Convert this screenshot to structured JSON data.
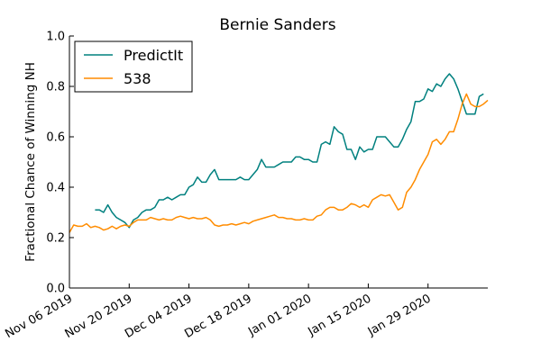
{
  "chart_data": {
    "type": "line",
    "title": "Bernie Sanders",
    "xlabel": "",
    "ylabel": "Fractional Chance of Winning NH",
    "ylim": [
      0,
      1.0
    ],
    "xlim": [
      "2019-11-06",
      "2020-02-12"
    ],
    "yticks": [
      "0.0",
      "0.2",
      "0.4",
      "0.6",
      "0.8",
      "1.0"
    ],
    "xticks": [
      {
        "label": "Nov 06 2019",
        "date": "2019-11-06"
      },
      {
        "label": "Nov 20 2019",
        "date": "2019-11-20"
      },
      {
        "label": "Dec 04 2019",
        "date": "2019-12-04"
      },
      {
        "label": "Dec 18 2019",
        "date": "2019-12-18"
      },
      {
        "label": "Jan 01 2020",
        "date": "2020-01-01"
      },
      {
        "label": "Jan 15 2020",
        "date": "2020-01-15"
      },
      {
        "label": "Jan 29 2020",
        "date": "2020-01-29"
      }
    ],
    "grid": false,
    "legend": "top-left",
    "series": [
      {
        "name": "PredictIt",
        "color": "#00807f",
        "points": [
          [
            "2019-11-12",
            0.31
          ],
          [
            "2019-11-13",
            0.31
          ],
          [
            "2019-11-14",
            0.3
          ],
          [
            "2019-11-15",
            0.33
          ],
          [
            "2019-11-16",
            0.3
          ],
          [
            "2019-11-17",
            0.28
          ],
          [
            "2019-11-18",
            0.27
          ],
          [
            "2019-11-19",
            0.26
          ],
          [
            "2019-11-20",
            0.24
          ],
          [
            "2019-11-21",
            0.27
          ],
          [
            "2019-11-22",
            0.28
          ],
          [
            "2019-11-23",
            0.3
          ],
          [
            "2019-11-24",
            0.31
          ],
          [
            "2019-11-25",
            0.31
          ],
          [
            "2019-11-26",
            0.32
          ],
          [
            "2019-11-27",
            0.35
          ],
          [
            "2019-11-28",
            0.35
          ],
          [
            "2019-11-29",
            0.36
          ],
          [
            "2019-11-30",
            0.35
          ],
          [
            "2019-12-01",
            0.36
          ],
          [
            "2019-12-02",
            0.37
          ],
          [
            "2019-12-03",
            0.37
          ],
          [
            "2019-12-04",
            0.4
          ],
          [
            "2019-12-05",
            0.41
          ],
          [
            "2019-12-06",
            0.44
          ],
          [
            "2019-12-07",
            0.42
          ],
          [
            "2019-12-08",
            0.42
          ],
          [
            "2019-12-09",
            0.45
          ],
          [
            "2019-12-10",
            0.47
          ],
          [
            "2019-12-11",
            0.43
          ],
          [
            "2019-12-12",
            0.43
          ],
          [
            "2019-12-13",
            0.43
          ],
          [
            "2019-12-14",
            0.43
          ],
          [
            "2019-12-15",
            0.43
          ],
          [
            "2019-12-16",
            0.44
          ],
          [
            "2019-12-17",
            0.43
          ],
          [
            "2019-12-18",
            0.43
          ],
          [
            "2019-12-19",
            0.45
          ],
          [
            "2019-12-20",
            0.47
          ],
          [
            "2019-12-21",
            0.51
          ],
          [
            "2019-12-22",
            0.48
          ],
          [
            "2019-12-23",
            0.48
          ],
          [
            "2019-12-24",
            0.48
          ],
          [
            "2019-12-25",
            0.49
          ],
          [
            "2019-12-26",
            0.5
          ],
          [
            "2019-12-27",
            0.5
          ],
          [
            "2019-12-28",
            0.5
          ],
          [
            "2019-12-29",
            0.52
          ],
          [
            "2019-12-30",
            0.52
          ],
          [
            "2019-12-31",
            0.51
          ],
          [
            "2020-01-01",
            0.51
          ],
          [
            "2020-01-02",
            0.5
          ],
          [
            "2020-01-03",
            0.5
          ],
          [
            "2020-01-04",
            0.57
          ],
          [
            "2020-01-05",
            0.58
          ],
          [
            "2020-01-06",
            0.57
          ],
          [
            "2020-01-07",
            0.64
          ],
          [
            "2020-01-08",
            0.62
          ],
          [
            "2020-01-09",
            0.61
          ],
          [
            "2020-01-10",
            0.55
          ],
          [
            "2020-01-11",
            0.55
          ],
          [
            "2020-01-12",
            0.51
          ],
          [
            "2020-01-13",
            0.56
          ],
          [
            "2020-01-14",
            0.54
          ],
          [
            "2020-01-15",
            0.55
          ],
          [
            "2020-01-16",
            0.55
          ],
          [
            "2020-01-17",
            0.6
          ],
          [
            "2020-01-18",
            0.6
          ],
          [
            "2020-01-19",
            0.6
          ],
          [
            "2020-01-20",
            0.58
          ],
          [
            "2020-01-21",
            0.56
          ],
          [
            "2020-01-22",
            0.56
          ],
          [
            "2020-01-23",
            0.59
          ],
          [
            "2020-01-24",
            0.63
          ],
          [
            "2020-01-25",
            0.66
          ],
          [
            "2020-01-26",
            0.74
          ],
          [
            "2020-01-27",
            0.74
          ],
          [
            "2020-01-28",
            0.75
          ],
          [
            "2020-01-29",
            0.79
          ],
          [
            "2020-01-30",
            0.78
          ],
          [
            "2020-01-31",
            0.81
          ],
          [
            "2020-02-01",
            0.8
          ],
          [
            "2020-02-02",
            0.83
          ],
          [
            "2020-02-03",
            0.85
          ],
          [
            "2020-02-04",
            0.83
          ],
          [
            "2020-02-05",
            0.79
          ],
          [
            "2020-02-06",
            0.74
          ],
          [
            "2020-02-07",
            0.69
          ],
          [
            "2020-02-08",
            0.69
          ],
          [
            "2020-02-09",
            0.69
          ],
          [
            "2020-02-10",
            0.76
          ],
          [
            "2020-02-11",
            0.77
          ]
        ]
      },
      {
        "name": "538",
        "color": "#ff8c00",
        "points": [
          [
            "2019-11-06",
            0.22
          ],
          [
            "2019-11-07",
            0.25
          ],
          [
            "2019-11-08",
            0.245
          ],
          [
            "2019-11-09",
            0.245
          ],
          [
            "2019-11-10",
            0.255
          ],
          [
            "2019-11-11",
            0.24
          ],
          [
            "2019-11-12",
            0.245
          ],
          [
            "2019-11-13",
            0.24
          ],
          [
            "2019-11-14",
            0.23
          ],
          [
            "2019-11-15",
            0.235
          ],
          [
            "2019-11-16",
            0.245
          ],
          [
            "2019-11-17",
            0.235
          ],
          [
            "2019-11-18",
            0.245
          ],
          [
            "2019-11-19",
            0.25
          ],
          [
            "2019-11-20",
            0.245
          ],
          [
            "2019-11-21",
            0.26
          ],
          [
            "2019-11-22",
            0.27
          ],
          [
            "2019-11-23",
            0.27
          ],
          [
            "2019-11-24",
            0.27
          ],
          [
            "2019-11-25",
            0.28
          ],
          [
            "2019-11-26",
            0.275
          ],
          [
            "2019-11-27",
            0.27
          ],
          [
            "2019-11-28",
            0.275
          ],
          [
            "2019-11-29",
            0.27
          ],
          [
            "2019-11-30",
            0.27
          ],
          [
            "2019-12-01",
            0.28
          ],
          [
            "2019-12-02",
            0.285
          ],
          [
            "2019-12-03",
            0.28
          ],
          [
            "2019-12-04",
            0.275
          ],
          [
            "2019-12-05",
            0.28
          ],
          [
            "2019-12-06",
            0.275
          ],
          [
            "2019-12-07",
            0.275
          ],
          [
            "2019-12-08",
            0.28
          ],
          [
            "2019-12-09",
            0.27
          ],
          [
            "2019-12-10",
            0.25
          ],
          [
            "2019-12-11",
            0.245
          ],
          [
            "2019-12-12",
            0.25
          ],
          [
            "2019-12-13",
            0.25
          ],
          [
            "2019-12-14",
            0.255
          ],
          [
            "2019-12-15",
            0.25
          ],
          [
            "2019-12-16",
            0.255
          ],
          [
            "2019-12-17",
            0.26
          ],
          [
            "2019-12-18",
            0.255
          ],
          [
            "2019-12-19",
            0.265
          ],
          [
            "2019-12-20",
            0.27
          ],
          [
            "2019-12-21",
            0.275
          ],
          [
            "2019-12-22",
            0.28
          ],
          [
            "2019-12-23",
            0.285
          ],
          [
            "2019-12-24",
            0.29
          ],
          [
            "2019-12-25",
            0.28
          ],
          [
            "2019-12-26",
            0.28
          ],
          [
            "2019-12-27",
            0.275
          ],
          [
            "2019-12-28",
            0.275
          ],
          [
            "2019-12-29",
            0.27
          ],
          [
            "2019-12-30",
            0.27
          ],
          [
            "2019-12-31",
            0.275
          ],
          [
            "2020-01-01",
            0.27
          ],
          [
            "2020-01-02",
            0.27
          ],
          [
            "2020-01-03",
            0.285
          ],
          [
            "2020-01-04",
            0.29
          ],
          [
            "2020-01-05",
            0.31
          ],
          [
            "2020-01-06",
            0.32
          ],
          [
            "2020-01-07",
            0.32
          ],
          [
            "2020-01-08",
            0.31
          ],
          [
            "2020-01-09",
            0.31
          ],
          [
            "2020-01-10",
            0.32
          ],
          [
            "2020-01-11",
            0.335
          ],
          [
            "2020-01-12",
            0.33
          ],
          [
            "2020-01-13",
            0.32
          ],
          [
            "2020-01-14",
            0.33
          ],
          [
            "2020-01-15",
            0.32
          ],
          [
            "2020-01-16",
            0.35
          ],
          [
            "2020-01-17",
            0.36
          ],
          [
            "2020-01-18",
            0.37
          ],
          [
            "2020-01-19",
            0.365
          ],
          [
            "2020-01-20",
            0.37
          ],
          [
            "2020-01-21",
            0.34
          ],
          [
            "2020-01-22",
            0.31
          ],
          [
            "2020-01-23",
            0.32
          ],
          [
            "2020-01-24",
            0.38
          ],
          [
            "2020-01-25",
            0.4
          ],
          [
            "2020-01-26",
            0.43
          ],
          [
            "2020-01-27",
            0.47
          ],
          [
            "2020-01-28",
            0.5
          ],
          [
            "2020-01-29",
            0.53
          ],
          [
            "2020-01-30",
            0.58
          ],
          [
            "2020-01-31",
            0.59
          ],
          [
            "2020-02-01",
            0.57
          ],
          [
            "2020-02-02",
            0.59
          ],
          [
            "2020-02-03",
            0.62
          ],
          [
            "2020-02-04",
            0.62
          ],
          [
            "2020-02-05",
            0.67
          ],
          [
            "2020-02-06",
            0.73
          ],
          [
            "2020-02-07",
            0.77
          ],
          [
            "2020-02-08",
            0.73
          ],
          [
            "2020-02-09",
            0.72
          ],
          [
            "2020-02-10",
            0.72
          ],
          [
            "2020-02-11",
            0.73
          ],
          [
            "2020-02-12",
            0.745
          ]
        ]
      }
    ]
  }
}
